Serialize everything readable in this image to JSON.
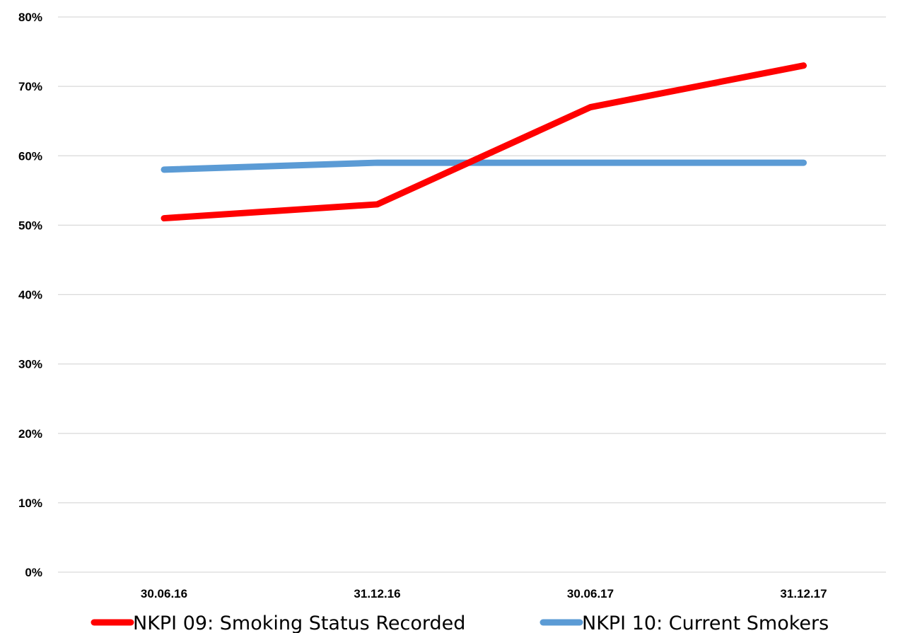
{
  "chart_data": {
    "type": "line",
    "title": "",
    "xlabel": "",
    "ylabel": "",
    "categories": [
      "30.06.16",
      "31.12.16",
      "30.06.17",
      "31.12.17"
    ],
    "y_ticks": [
      "0%",
      "10%",
      "20%",
      "30%",
      "40%",
      "50%",
      "60%",
      "70%",
      "80%"
    ],
    "ylim": [
      0,
      80
    ],
    "grid": true,
    "legend_position": "bottom",
    "series": [
      {
        "name": "NKPI 09: Smoking Status Recorded",
        "color": "#ff0000",
        "values": [
          51,
          53,
          67,
          73
        ]
      },
      {
        "name": "NKPI 10: Current Smokers",
        "color": "#5b9bd5",
        "values": [
          58,
          59,
          59,
          59
        ]
      }
    ]
  }
}
